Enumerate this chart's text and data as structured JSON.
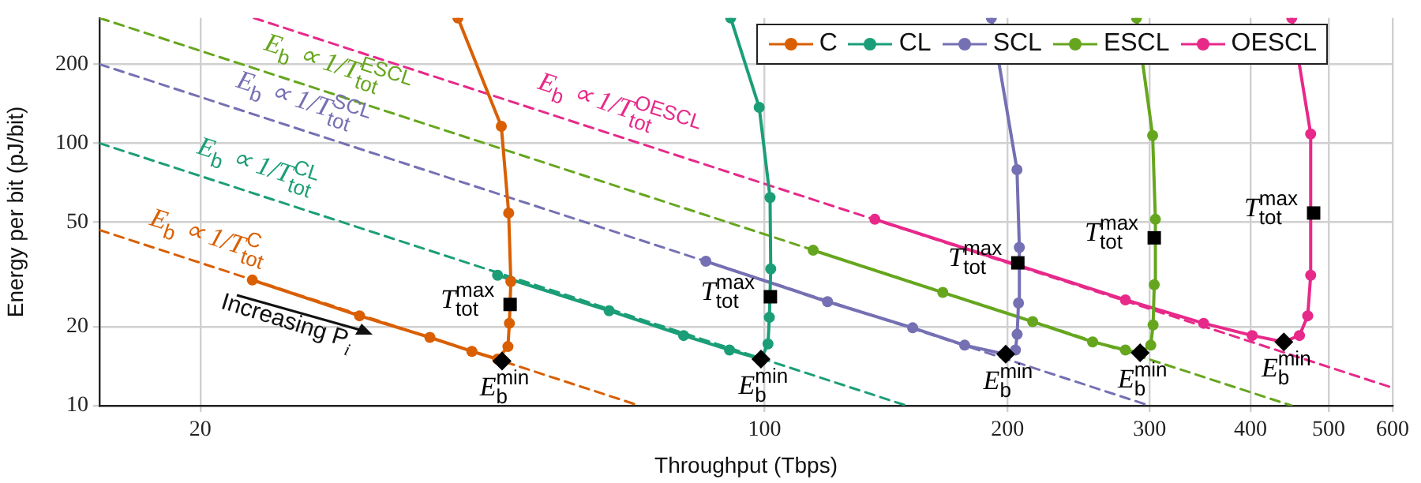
{
  "chart_data": {
    "type": "line",
    "xlabel": "Throughput (Tbps)",
    "ylabel": "Energy per bit (pJ/bit)",
    "log": "xy",
    "xlim": [
      15,
      600
    ],
    "xticks": [
      20,
      100,
      200,
      300,
      400,
      500,
      600
    ],
    "ylim": [
      10,
      300
    ],
    "yticks": [
      10,
      20,
      50,
      100,
      200
    ],
    "grid": true,
    "legend": "top right",
    "marker": "circle",
    "line_style": "solid",
    "series": [
      {
        "type": "scatter",
        "marker": "square",
        "color": "#000000",
        "x": [
          48.4,
          101.7,
          206,
          304,
          479
        ],
        "values": [
          24.3,
          26.0,
          35.0,
          43.6,
          54.2
        ]
      },
      {
        "type": "scatter",
        "marker": "diamond",
        "color": "#000000",
        "x": [
          47.3,
          99,
          199,
          292,
          440
        ],
        "values": [
          14.8,
          15.05,
          15.7,
          15.9,
          17.5
        ]
      },
      {
        "name": "C",
        "color": "#d95f02",
        "x": [
          23.2,
          31.5,
          38.5,
          43.4,
          46.7,
          48.1,
          48.3,
          48.5,
          48.2,
          47.2,
          41.7
        ],
        "values": [
          30.1,
          22.0,
          18.2,
          16.1,
          15.05,
          16.8,
          20.6,
          29.7,
          54.2,
          116,
          300
        ]
      },
      {
        "name": "CL",
        "color": "#1b9e77",
        "x": [
          46.7,
          64.2,
          79.4,
          90.5,
          99.0,
          101.0,
          101.4,
          101.8,
          101.6,
          98.5,
          90.8
        ],
        "values": [
          31.4,
          23.0,
          18.5,
          16.3,
          15.05,
          17.2,
          21.7,
          33.2,
          62.1,
          137,
          300
        ]
      },
      {
        "name": "SCL",
        "color": "#7570b3",
        "x": [
          84.6,
          119.7,
          152.6,
          177,
          199,
          204.6,
          205.6,
          206.4,
          206.9,
          205.5,
          191
        ],
        "values": [
          35.5,
          24.9,
          19.8,
          17.0,
          15.7,
          16.3,
          18.7,
          24.6,
          40.1,
          79.3,
          300
        ]
      },
      {
        "name": "ESCL",
        "color": "#66a61e",
        "x": [
          114.9,
          166.3,
          214.9,
          255,
          280,
          292,
          301,
          303,
          304,
          305,
          302.6,
          289
        ],
        "values": [
          39.1,
          27.0,
          20.9,
          17.5,
          16.3,
          15.9,
          17.0,
          20.3,
          28.9,
          51.3,
          107,
          300
        ]
      },
      {
        "name": "OESCL",
        "color": "#e7298a",
        "x": [
          137,
          280,
          350,
          402,
          440,
          460,
          471,
          475,
          475,
          450
        ],
        "values": [
          51.3,
          25.3,
          20.6,
          18.5,
          17.5,
          18.5,
          22.0,
          31.4,
          108.5,
          300
        ]
      },
      {
        "color": "#d95f02",
        "marker": "none",
        "line_style": "dashed",
        "x": [
          15,
          70
        ],
        "values": [
          46.7,
          10
        ]
      },
      {
        "color": "#1b9e77",
        "marker": "none",
        "line_style": "dashed",
        "x": [
          15,
          150
        ],
        "values": [
          100,
          10
        ]
      },
      {
        "color": "#7570b3",
        "marker": "none",
        "line_style": "dashed",
        "x": [
          15,
          300
        ],
        "values": [
          200,
          10
        ]
      },
      {
        "color": "#66a61e",
        "marker": "none",
        "line_style": "dashed",
        "x": [
          15,
          450
        ],
        "values": [
          300,
          10
        ]
      },
      {
        "color": "#e7298a",
        "marker": "none",
        "line_style": "dashed",
        "x": [
          23.3,
          600
        ],
        "values": [
          300,
          11.7
        ]
      }
    ],
    "annotations": [
      {
        "text": "E$_{b}$ ∝ 1/T$_{tot}$$^{C}$",
        "x": 20,
        "y": 35
      },
      {
        "text": "E$_{b}$ ∝ 1/T$_{tot}$$^{CL}$",
        "x": 23,
        "y": 65.2
      },
      {
        "text": "E$_{b}$ ∝ 1/T$_{tot}$$^{SCL}$",
        "x": 26.2,
        "y": 114.5
      },
      {
        "text": "E$_{b}$ ∝ 1/T$_{tot}$$^{ESCL}$",
        "x": 28.9,
        "y": 155.7
      },
      {
        "text": "E$_{b}$ ∝ 1/T$_{tot}$$^{OESCL}$",
        "x": 64.5,
        "y": 108.5
      },
      {
        "text": "T$_{tot}$$^{max}$",
        "x": 48.4,
        "y": 24.3
      },
      {
        "text": "T$_{tot}$$^{max}$",
        "x": 101.7,
        "y": 26.0
      },
      {
        "text": "T$_{tot}$$^{max}$",
        "x": 206,
        "y": 35.0
      },
      {
        "text": "T$_{tot}$$^{max}$",
        "x": 304,
        "y": 43.6
      },
      {
        "text": "T$_{tot}$$^{max}$",
        "x": 479,
        "y": 54.2
      },
      {
        "text": "E$_{b}$$^{min}$",
        "x": 47.3,
        "y": 14.8
      },
      {
        "text": "E$_{b}$$^{min}$",
        "x": 99,
        "y": 15.05
      },
      {
        "text": "E$_{b}$$^{min}$",
        "x": 199,
        "y": 15.7
      },
      {
        "text": "E$_{b}$$^{min}$",
        "x": 292,
        "y": 15.9
      },
      {
        "text": "E$_{b}$$^{min}$",
        "x": 440,
        "y": 17.5
      },
      "Increasing P$_{i}$"
    ]
  }
}
